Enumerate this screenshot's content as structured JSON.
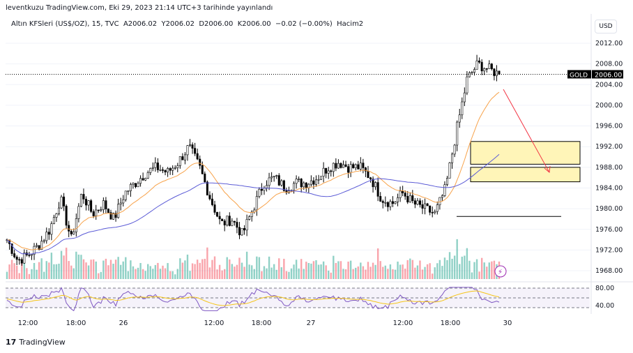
{
  "header": {
    "published": "leventkuzu TradingView.com, Eki 29, 2023 21:14 UTC+3 tarihinde yayınlandı",
    "legend": "Altın KFSleri (US$/OZ), 15, TVC  A2006.02  Y2006.02  D2006.00  K2006.00  −0.02 (−0.00%)  Hacim2"
  },
  "currency": "USD",
  "chart_data": {
    "type": "candlestick",
    "symbol": "GOLD",
    "last_price": "2006.00",
    "price_ticks": [
      "2012.00",
      "2008.00",
      "2004.00",
      "2000.00",
      "1996.00",
      "1992.00",
      "1988.00",
      "1984.00",
      "1980.00",
      "1976.00",
      "1972.00",
      "1968.00"
    ],
    "price_range": [
      1966,
      2014
    ],
    "time_ticks": [
      "12:00",
      "18:00",
      "26",
      "12:00",
      "18:00",
      "27",
      "12:00",
      "18:00",
      "30"
    ],
    "close_path": [
      1974,
      1970,
      1971,
      1973,
      1976,
      1982,
      1974,
      1983,
      1979,
      1981,
      1978,
      1983,
      1985,
      1987,
      1988,
      1987,
      1989,
      1992,
      1988,
      1982,
      1977,
      1978,
      1975,
      1980,
      1985,
      1986,
      1984,
      1985,
      1985,
      1986,
      1988,
      1989,
      1988,
      1988,
      1986,
      1982,
      1981,
      1983,
      1981,
      1980,
      1979,
      1984,
      1995,
      2005,
      2008,
      2007,
      2006
    ],
    "zones": [
      {
        "from": 1988.6,
        "to": 1993
      },
      {
        "from": 1985.2,
        "to": 1988
      }
    ],
    "support_line": 1978.5,
    "rsi_ticks": [
      "80.00",
      "40.00"
    ],
    "colors": {
      "up": "#089981",
      "down": "#f23645",
      "ema": "#f7a24a",
      "sma": "#5b5bd6",
      "zone": "#fff5b8",
      "arrow": "#f23645"
    }
  },
  "footer": {
    "brand": "TradingView"
  }
}
